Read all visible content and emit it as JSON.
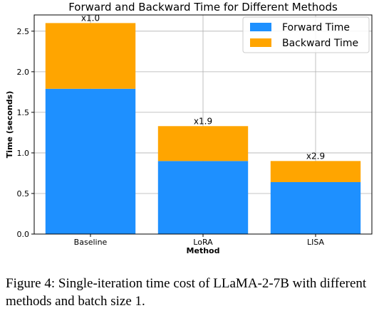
{
  "chart_data": {
    "type": "bar",
    "stacked": true,
    "title": "Forward and Backward Time for Different Methods",
    "xlabel": "Method",
    "ylabel": "Time (seconds)",
    "categories": [
      "Baseline",
      "LoRA",
      "LISA"
    ],
    "series": [
      {
        "name": "Forward Time",
        "color": "#1e90ff",
        "values": [
          1.79,
          0.9,
          0.64
        ]
      },
      {
        "name": "Backward Time",
        "color": "#ffa500",
        "values": [
          0.81,
          0.43,
          0.26
        ]
      }
    ],
    "bar_labels": [
      "x1.0",
      "x1.9",
      "x2.9"
    ],
    "ylim": [
      0,
      2.7
    ],
    "yticks": [
      0.0,
      0.5,
      1.0,
      1.5,
      2.0,
      2.5
    ],
    "ytick_labels": [
      "0.0",
      "0.5",
      "1.0",
      "1.5",
      "2.0",
      "2.5"
    ],
    "grid": true,
    "legend_position": "top-right"
  },
  "caption": "Figure 4: Single-iteration time cost of LLaMA-2-7B with different methods and batch size 1."
}
